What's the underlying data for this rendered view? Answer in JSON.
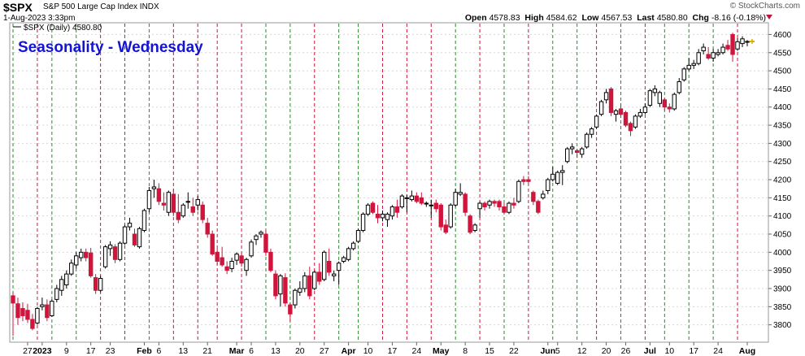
{
  "header": {
    "symbol": "$SPX",
    "description": "S&P 500 Large Cap Index  INDX",
    "date": "1-Aug-2023 3:33pm",
    "watermark": "© StockCharts.com",
    "ohlc": {
      "open_label": "Open",
      "open": "4578.83",
      "high_label": "High",
      "high": "4584.62",
      "low_label": "Low",
      "low": "4567.53",
      "last_label": "Last",
      "last": "4580.80",
      "chg_label": "Chg",
      "chg": "-8.16 (-0.18%)"
    }
  },
  "colors": {
    "up_candle": "#000000",
    "down_candle": "#d0143c",
    "wednesday_up_line": "#2a8a2a",
    "wednesday_down_line": "#d0143c",
    "title_blue": "#1414d2",
    "grid": "#d8d8d8"
  },
  "chart_data": {
    "type": "candlestick",
    "title": "Seasonality - Wednesday",
    "legend": "$SPX (Daily) 4580.80",
    "last_marker": "4580.80",
    "ylim": [
      3760,
      4620
    ],
    "y_ticks": [
      3800,
      3850,
      3900,
      3950,
      4000,
      4050,
      4100,
      4150,
      4200,
      4250,
      4300,
      4350,
      4400,
      4450,
      4500,
      4550,
      4600
    ],
    "x_tick_labels": [
      {
        "label": "27",
        "bar": 3
      },
      {
        "label": "2023",
        "bar": 6
      },
      {
        "label": "9",
        "bar": 11
      },
      {
        "label": "17",
        "bar": 16
      },
      {
        "label": "23",
        "bar": 20
      },
      {
        "label": "Feb",
        "bar": 27
      },
      {
        "label": "6",
        "bar": 30
      },
      {
        "label": "13",
        "bar": 35
      },
      {
        "label": "21",
        "bar": 40
      },
      {
        "label": "Mar",
        "bar": 46
      },
      {
        "label": "6",
        "bar": 49
      },
      {
        "label": "13",
        "bar": 54
      },
      {
        "label": "20",
        "bar": 59
      },
      {
        "label": "27",
        "bar": 64
      },
      {
        "label": "Apr",
        "bar": 69
      },
      {
        "label": "10",
        "bar": 73
      },
      {
        "label": "17",
        "bar": 78
      },
      {
        "label": "24",
        "bar": 83
      },
      {
        "label": "May",
        "bar": 88
      },
      {
        "label": "8",
        "bar": 93
      },
      {
        "label": "15",
        "bar": 98
      },
      {
        "label": "22",
        "bar": 103
      },
      {
        "label": "Jun",
        "bar": 110
      },
      {
        "label": "5",
        "bar": 112
      },
      {
        "label": "12",
        "bar": 117
      },
      {
        "label": "20",
        "bar": 122
      },
      {
        "label": "26",
        "bar": 126
      },
      {
        "label": "Jul",
        "bar": 131
      },
      {
        "label": "10",
        "bar": 135
      },
      {
        "label": "17",
        "bar": 140
      },
      {
        "label": "24",
        "bar": 145
      },
      {
        "label": "Aug",
        "bar": 151
      }
    ],
    "wednesday_markers": [
      {
        "bar": 0,
        "up": true
      },
      {
        "bar": 5,
        "up": false
      },
      {
        "bar": 8,
        "up": true
      },
      {
        "bar": 13,
        "up": true
      },
      {
        "bar": 18,
        "up": false
      },
      {
        "bar": 23,
        "up": false
      },
      {
        "bar": 28,
        "up": true
      },
      {
        "bar": 33,
        "up": false
      },
      {
        "bar": 38,
        "up": false
      },
      {
        "bar": 42,
        "up": false
      },
      {
        "bar": 47,
        "up": false
      },
      {
        "bar": 52,
        "up": true
      },
      {
        "bar": 57,
        "up": true
      },
      {
        "bar": 62,
        "up": false
      },
      {
        "bar": 67,
        "up": true
      },
      {
        "bar": 71,
        "up": true
      },
      {
        "bar": 76,
        "up": false
      },
      {
        "bar": 81,
        "up": false
      },
      {
        "bar": 86,
        "up": false
      },
      {
        "bar": 91,
        "up": true
      },
      {
        "bar": 96,
        "up": false
      },
      {
        "bar": 101,
        "up": true
      },
      {
        "bar": 106,
        "up": false
      },
      {
        "bar": 111,
        "up": true
      },
      {
        "bar": 116,
        "up": true
      },
      {
        "bar": 120,
        "up": false
      },
      {
        "bar": 125,
        "up": true
      },
      {
        "bar": 130,
        "up": false
      },
      {
        "bar": 134,
        "up": true
      },
      {
        "bar": 139,
        "up": true
      },
      {
        "bar": 144,
        "up": true
      },
      {
        "bar": 149,
        "up": false
      }
    ],
    "candles": [
      {
        "o": 3880,
        "h": 3890,
        "l": 3770,
        "c": 3860
      },
      {
        "o": 3858,
        "h": 3875,
        "l": 3800,
        "c": 3820
      },
      {
        "o": 3845,
        "h": 3862,
        "l": 3810,
        "c": 3825
      },
      {
        "o": 3840,
        "h": 3858,
        "l": 3805,
        "c": 3815
      },
      {
        "o": 3815,
        "h": 3830,
        "l": 3785,
        "c": 3790
      },
      {
        "o": 3805,
        "h": 3850,
        "l": 3800,
        "c": 3845
      },
      {
        "o": 3850,
        "h": 3875,
        "l": 3840,
        "c": 3855
      },
      {
        "o": 3855,
        "h": 3870,
        "l": 3810,
        "c": 3820
      },
      {
        "o": 3825,
        "h": 3870,
        "l": 3822,
        "c": 3865
      },
      {
        "o": 3870,
        "h": 3910,
        "l": 3862,
        "c": 3900
      },
      {
        "o": 3895,
        "h": 3935,
        "l": 3880,
        "c": 3925
      },
      {
        "o": 3910,
        "h": 3950,
        "l": 3900,
        "c": 3940
      },
      {
        "o": 3940,
        "h": 3980,
        "l": 3935,
        "c": 3970
      },
      {
        "o": 3965,
        "h": 4000,
        "l": 3955,
        "c": 3990
      },
      {
        "o": 3985,
        "h": 4010,
        "l": 3975,
        "c": 4000
      },
      {
        "o": 4000,
        "h": 4010,
        "l": 3975,
        "c": 3985
      },
      {
        "o": 3998,
        "h": 4012,
        "l": 3930,
        "c": 3935
      },
      {
        "o": 3930,
        "h": 3940,
        "l": 3885,
        "c": 3895
      },
      {
        "o": 3895,
        "h": 3935,
        "l": 3890,
        "c": 3928
      },
      {
        "o": 3960,
        "h": 4020,
        "l": 3955,
        "c": 4015
      },
      {
        "o": 4010,
        "h": 4030,
        "l": 3990,
        "c": 4020
      },
      {
        "o": 4015,
        "h": 4022,
        "l": 3970,
        "c": 3980
      },
      {
        "o": 3980,
        "h": 4030,
        "l": 3975,
        "c": 4025
      },
      {
        "o": 4025,
        "h": 4075,
        "l": 4020,
        "c": 4070
      },
      {
        "o": 4070,
        "h": 4095,
        "l": 4060,
        "c": 4080
      },
      {
        "o": 4050,
        "h": 4065,
        "l": 4015,
        "c": 4020
      },
      {
        "o": 4015,
        "h": 4070,
        "l": 4010,
        "c": 4065
      },
      {
        "o": 4060,
        "h": 4120,
        "l": 4055,
        "c": 4115
      },
      {
        "o": 4120,
        "h": 4180,
        "l": 4110,
        "c": 4170
      },
      {
        "o": 4175,
        "h": 4200,
        "l": 4150,
        "c": 4180
      },
      {
        "o": 4175,
        "h": 4190,
        "l": 4130,
        "c": 4140
      },
      {
        "o": 4135,
        "h": 4165,
        "l": 4115,
        "c": 4130
      },
      {
        "o": 4110,
        "h": 4170,
        "l": 4100,
        "c": 4165
      },
      {
        "o": 4160,
        "h": 4175,
        "l": 4100,
        "c": 4110
      },
      {
        "o": 4110,
        "h": 4160,
        "l": 4080,
        "c": 4090
      },
      {
        "o": 4100,
        "h": 4135,
        "l": 4095,
        "c": 4130
      },
      {
        "o": 4140,
        "h": 4165,
        "l": 4120,
        "c": 4140
      },
      {
        "o": 4125,
        "h": 4150,
        "l": 4100,
        "c": 4110
      },
      {
        "o": 4130,
        "h": 4155,
        "l": 4115,
        "c": 4145
      },
      {
        "o": 4130,
        "h": 4140,
        "l": 4080,
        "c": 4090
      },
      {
        "o": 4080,
        "h": 4095,
        "l": 4040,
        "c": 4050
      },
      {
        "o": 4050,
        "h": 4060,
        "l": 3990,
        "c": 3995
      },
      {
        "o": 4000,
        "h": 4010,
        "l": 3965,
        "c": 3975
      },
      {
        "o": 3985,
        "h": 4015,
        "l": 3960,
        "c": 3965
      },
      {
        "o": 3960,
        "h": 3975,
        "l": 3940,
        "c": 3950
      },
      {
        "o": 3955,
        "h": 3985,
        "l": 3945,
        "c": 3975
      },
      {
        "o": 3978,
        "h": 4000,
        "l": 3965,
        "c": 3995
      },
      {
        "o": 3990,
        "h": 4000,
        "l": 3960,
        "c": 3970
      },
      {
        "o": 3950,
        "h": 3985,
        "l": 3935,
        "c": 3980
      },
      {
        "o": 3990,
        "h": 4035,
        "l": 3985,
        "c": 4028
      },
      {
        "o": 4035,
        "h": 4050,
        "l": 4020,
        "c": 4045
      },
      {
        "o": 4050,
        "h": 4060,
        "l": 4040,
        "c": 4055
      },
      {
        "o": 4050,
        "h": 4060,
        "l": 3990,
        "c": 4000
      },
      {
        "o": 4000,
        "h": 4010,
        "l": 3945,
        "c": 3950
      },
      {
        "o": 3940,
        "h": 3950,
        "l": 3870,
        "c": 3880
      },
      {
        "o": 3885,
        "h": 3940,
        "l": 3850,
        "c": 3935
      },
      {
        "o": 3930,
        "h": 3942,
        "l": 3850,
        "c": 3860
      },
      {
        "o": 3855,
        "h": 3860,
        "l": 3810,
        "c": 3830
      },
      {
        "o": 3855,
        "h": 3900,
        "l": 3845,
        "c": 3895
      },
      {
        "o": 3890,
        "h": 3920,
        "l": 3880,
        "c": 3900
      },
      {
        "o": 3900,
        "h": 3945,
        "l": 3890,
        "c": 3935
      },
      {
        "o": 3935,
        "h": 3960,
        "l": 3870,
        "c": 3880
      },
      {
        "o": 3900,
        "h": 3950,
        "l": 3895,
        "c": 3945
      },
      {
        "o": 3945,
        "h": 3970,
        "l": 3910,
        "c": 3920
      },
      {
        "o": 3925,
        "h": 4005,
        "l": 3920,
        "c": 4000
      },
      {
        "o": 3975,
        "h": 4010,
        "l": 3935,
        "c": 3945
      },
      {
        "o": 3935,
        "h": 3950,
        "l": 3920,
        "c": 3940
      },
      {
        "o": 3950,
        "h": 3975,
        "l": 3910,
        "c": 3970
      },
      {
        "o": 3975,
        "h": 3990,
        "l": 3970,
        "c": 3985
      },
      {
        "o": 3980,
        "h": 4015,
        "l": 3975,
        "c": 4010
      },
      {
        "o": 4010,
        "h": 4030,
        "l": 4005,
        "c": 4025
      },
      {
        "o": 4030,
        "h": 4065,
        "l": 4025,
        "c": 4060
      },
      {
        "o": 4060,
        "h": 4110,
        "l": 4055,
        "c": 4105
      },
      {
        "o": 4105,
        "h": 4135,
        "l": 4100,
        "c": 4130
      },
      {
        "o": 4135,
        "h": 4140,
        "l": 4105,
        "c": 4110
      },
      {
        "o": 4105,
        "h": 4130,
        "l": 4080,
        "c": 4095
      },
      {
        "o": 4095,
        "h": 4115,
        "l": 4085,
        "c": 4105
      },
      {
        "o": 4090,
        "h": 4110,
        "l": 4070,
        "c": 4105
      },
      {
        "o": 4100,
        "h": 4130,
        "l": 4090,
        "c": 4125
      },
      {
        "o": 4125,
        "h": 4145,
        "l": 4095,
        "c": 4110
      },
      {
        "o": 4125,
        "h": 4160,
        "l": 4120,
        "c": 4155
      },
      {
        "o": 4150,
        "h": 4158,
        "l": 4110,
        "c": 4150
      },
      {
        "o": 4145,
        "h": 4170,
        "l": 4140,
        "c": 4155
      },
      {
        "o": 4155,
        "h": 4165,
        "l": 4135,
        "c": 4140
      },
      {
        "o": 4150,
        "h": 4165,
        "l": 4130,
        "c": 4135
      },
      {
        "o": 4135,
        "h": 4140,
        "l": 4125,
        "c": 4135
      },
      {
        "o": 4130,
        "h": 4145,
        "l": 4095,
        "c": 4130
      },
      {
        "o": 4135,
        "h": 4145,
        "l": 4110,
        "c": 4120
      },
      {
        "o": 4130,
        "h": 4135,
        "l": 4060,
        "c": 4070
      },
      {
        "o": 4075,
        "h": 4090,
        "l": 4050,
        "c": 4055
      },
      {
        "o": 4070,
        "h": 4135,
        "l": 4065,
        "c": 4130
      },
      {
        "o": 4130,
        "h": 4175,
        "l": 4125,
        "c": 4165
      },
      {
        "o": 4160,
        "h": 4190,
        "l": 4155,
        "c": 4165
      },
      {
        "o": 4160,
        "h": 4165,
        "l": 4100,
        "c": 4110
      },
      {
        "o": 4100,
        "h": 4105,
        "l": 4050,
        "c": 4055
      },
      {
        "o": 4060,
        "h": 4080,
        "l": 4055,
        "c": 4075
      },
      {
        "o": 4120,
        "h": 4140,
        "l": 4095,
        "c": 4135
      },
      {
        "o": 4135,
        "h": 4140,
        "l": 4115,
        "c": 4125
      },
      {
        "o": 4130,
        "h": 4145,
        "l": 4120,
        "c": 4140
      },
      {
        "o": 4140,
        "h": 4145,
        "l": 4125,
        "c": 4135
      },
      {
        "o": 4140,
        "h": 4145,
        "l": 4115,
        "c": 4125
      },
      {
        "o": 4125,
        "h": 4135,
        "l": 4105,
        "c": 4110
      },
      {
        "o": 4110,
        "h": 4140,
        "l": 4105,
        "c": 4135
      },
      {
        "o": 4135,
        "h": 4150,
        "l": 4120,
        "c": 4130
      },
      {
        "o": 4140,
        "h": 4200,
        "l": 4135,
        "c": 4195
      },
      {
        "o": 4200,
        "h": 4210,
        "l": 4185,
        "c": 4195
      },
      {
        "o": 4200,
        "h": 4210,
        "l": 4190,
        "c": 4195
      },
      {
        "o": 4165,
        "h": 4170,
        "l": 4130,
        "c": 4140
      },
      {
        "o": 4140,
        "h": 4145,
        "l": 4105,
        "c": 4110
      },
      {
        "o": 4150,
        "h": 4170,
        "l": 4145,
        "c": 4160
      },
      {
        "o": 4170,
        "h": 4205,
        "l": 4160,
        "c": 4200
      },
      {
        "o": 4200,
        "h": 4235,
        "l": 4195,
        "c": 4215
      },
      {
        "o": 4190,
        "h": 4225,
        "l": 4185,
        "c": 4220
      },
      {
        "o": 4220,
        "h": 4240,
        "l": 4185,
        "c": 4225
      },
      {
        "o": 4250,
        "h": 4290,
        "l": 4245,
        "c": 4285
      },
      {
        "o": 4285,
        "h": 4300,
        "l": 4270,
        "c": 4290
      },
      {
        "o": 4280,
        "h": 4285,
        "l": 4260,
        "c": 4275
      },
      {
        "o": 4270,
        "h": 4290,
        "l": 4260,
        "c": 4285
      },
      {
        "o": 4290,
        "h": 4330,
        "l": 4285,
        "c": 4325
      },
      {
        "o": 4325,
        "h": 4345,
        "l": 4315,
        "c": 4340
      },
      {
        "o": 4345,
        "h": 4380,
        "l": 4340,
        "c": 4375
      },
      {
        "o": 4380,
        "h": 4420,
        "l": 4375,
        "c": 4415
      },
      {
        "o": 4420,
        "h": 4450,
        "l": 4410,
        "c": 4440
      },
      {
        "o": 4450,
        "h": 4455,
        "l": 4375,
        "c": 4385
      },
      {
        "o": 4380,
        "h": 4395,
        "l": 4360,
        "c": 4390
      },
      {
        "o": 4395,
        "h": 4410,
        "l": 4370,
        "c": 4380
      },
      {
        "o": 4385,
        "h": 4390,
        "l": 4345,
        "c": 4350
      },
      {
        "o": 4355,
        "h": 4360,
        "l": 4320,
        "c": 4335
      },
      {
        "o": 4345,
        "h": 4380,
        "l": 4340,
        "c": 4375
      },
      {
        "o": 4375,
        "h": 4395,
        "l": 4370,
        "c": 4385
      },
      {
        "o": 4385,
        "h": 4410,
        "l": 4380,
        "c": 4400
      },
      {
        "o": 4405,
        "h": 4450,
        "l": 4400,
        "c": 4445
      },
      {
        "o": 4440,
        "h": 4460,
        "l": 4430,
        "c": 4450
      },
      {
        "o": 4410,
        "h": 4445,
        "l": 4400,
        "c": 4440
      },
      {
        "o": 4420,
        "h": 4425,
        "l": 4390,
        "c": 4400
      },
      {
        "o": 4400,
        "h": 4410,
        "l": 4385,
        "c": 4395
      },
      {
        "o": 4395,
        "h": 4440,
        "l": 4390,
        "c": 4435
      },
      {
        "o": 4440,
        "h": 4480,
        "l": 4435,
        "c": 4470
      },
      {
        "o": 4475,
        "h": 4510,
        "l": 4470,
        "c": 4505
      },
      {
        "o": 4505,
        "h": 4535,
        "l": 4500,
        "c": 4515
      },
      {
        "o": 4515,
        "h": 4530,
        "l": 4505,
        "c": 4520
      },
      {
        "o": 4520,
        "h": 4560,
        "l": 4515,
        "c": 4550
      },
      {
        "o": 4555,
        "h": 4575,
        "l": 4545,
        "c": 4565
      },
      {
        "o": 4545,
        "h": 4565,
        "l": 4530,
        "c": 4535
      },
      {
        "o": 4535,
        "h": 4560,
        "l": 4525,
        "c": 4550
      },
      {
        "o": 4545,
        "h": 4560,
        "l": 4540,
        "c": 4550
      },
      {
        "o": 4550,
        "h": 4575,
        "l": 4545,
        "c": 4565
      },
      {
        "o": 4570,
        "h": 4585,
        "l": 4555,
        "c": 4560
      },
      {
        "o": 4600,
        "h": 4605,
        "l": 4525,
        "c": 4545
      },
      {
        "o": 4560,
        "h": 4590,
        "l": 4555,
        "c": 4580
      },
      {
        "o": 4575,
        "h": 4595,
        "l": 4565,
        "c": 4588
      },
      {
        "o": 4578.83,
        "h": 4584.62,
        "l": 4567.53,
        "c": 4580.8
      }
    ]
  }
}
